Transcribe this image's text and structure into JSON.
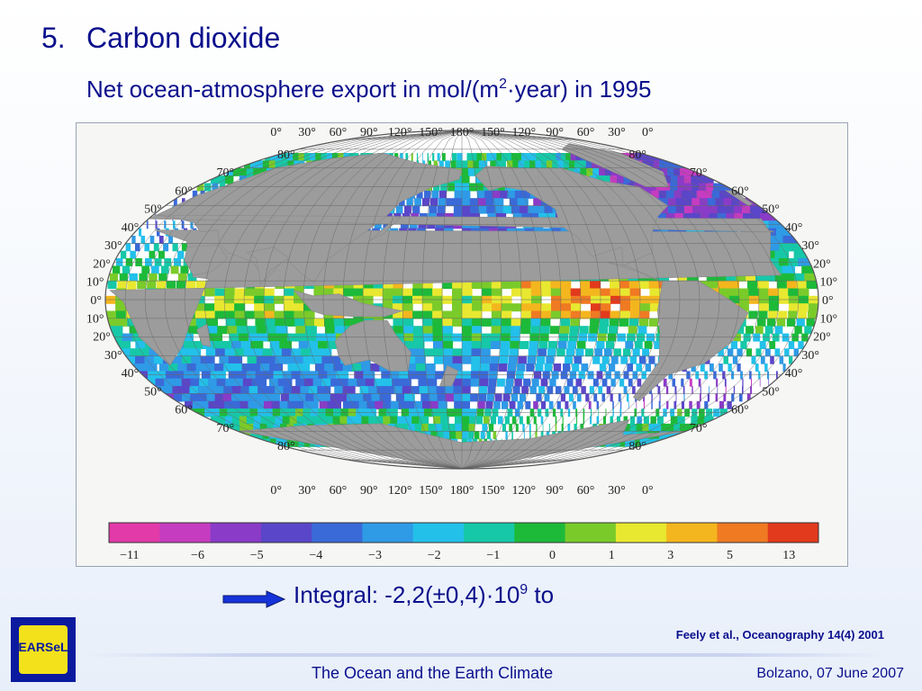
{
  "slide": {
    "number": "5.",
    "title": "Carbon dioxide",
    "subtitle_pre": "Net ocean-atmosphere export in mol/(m",
    "subtitle_sup": "2",
    "subtitle_post": "·year) in 1995",
    "integral_pre": "Integral: -2,2(±0,4)·10",
    "integral_sup": "9",
    "integral_post": " to",
    "citation": "Feely et al., Oceanography 14(4) 2001",
    "logo_text": "EARSeL",
    "footer_center": "The Ocean and the Earth Climate",
    "footer_right": "Bolzano, 07 June 2007"
  },
  "map": {
    "top_lon_labels": [
      "0°",
      "30°",
      "60°",
      "90°",
      "120°",
      "150°",
      "180°",
      "150°",
      "120°",
      "90°",
      "60°",
      "30°",
      "0°"
    ],
    "bottom_lon_labels": [
      "0°",
      "30°",
      "60°",
      "90°",
      "120°",
      "150°",
      "180°",
      "150°",
      "120°",
      "90°",
      "60°",
      "30°",
      "0°"
    ],
    "lat_labels": [
      "80°",
      "70°",
      "60°",
      "50°",
      "40°",
      "30°",
      "20°",
      "10°",
      "0°",
      "10°",
      "20°",
      "30°",
      "40°",
      "50°",
      "60°",
      "70°",
      "80°"
    ],
    "colorbar_ticks": [
      "−11",
      "−6",
      "−5",
      "−4",
      "−3",
      "−2",
      "−1",
      "0",
      "1",
      "3",
      "5",
      "13"
    ],
    "colorbar_colors": [
      "#e23aa8",
      "#c63cc0",
      "#8a3bc8",
      "#5a46c8",
      "#3a6ad8",
      "#2f9ae6",
      "#23c0ea",
      "#16c8a8",
      "#1dba3a",
      "#7acb2a",
      "#e8e830",
      "#f4b61e",
      "#ef7a22",
      "#e23a1c"
    ],
    "colors": {
      "land": "#9c9c9c",
      "ocean_bg": "#ffffff",
      "grid": "#666666",
      "accent": "#0a0f8c",
      "arrow": "#1533d8"
    }
  }
}
